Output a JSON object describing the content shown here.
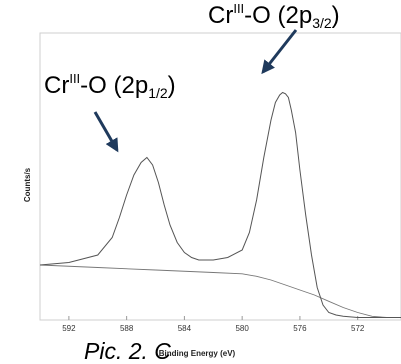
{
  "chart_data": {
    "type": "line",
    "title": "",
    "xlabel": "Binding Energy (eV)",
    "ylabel": "Counts/s",
    "xlim": [
      594,
      569
    ],
    "x_reversed": true,
    "ylim": [
      0,
      100
    ],
    "x_ticks": [
      592,
      588,
      584,
      580,
      576,
      572
    ],
    "grid": false,
    "series": [
      {
        "x": [
          594,
          592,
          590,
          589,
          588.5,
          588,
          587.5,
          587,
          586.6,
          586.2,
          585.8,
          585.4,
          585,
          584.5,
          584,
          583.5,
          583,
          582,
          581,
          580,
          579.5,
          579,
          578.5,
          578,
          577.7,
          577.4,
          577.2,
          577,
          576.8,
          576.6,
          576.3,
          576,
          575.6,
          575.2,
          574.8,
          574.4,
          574,
          573.5,
          573,
          572,
          571,
          570,
          569
        ],
        "y": [
          22,
          23,
          26,
          33,
          41,
          50,
          58,
          63,
          65,
          62,
          55,
          46,
          38,
          31,
          27,
          25,
          24,
          24,
          25,
          28,
          35,
          48,
          65,
          80,
          87,
          90,
          91,
          90.5,
          89,
          84,
          75,
          60,
          42,
          26,
          13,
          6,
          3,
          2,
          1.5,
          1,
          1,
          1,
          1
        ]
      },
      {
        "x": [
          594,
          590,
          586,
          582,
          580,
          579,
          578,
          577,
          576,
          575,
          574,
          573,
          572,
          571,
          570,
          569
        ],
        "y": [
          22,
          21,
          20,
          19,
          18.5,
          17.5,
          16,
          14,
          12,
          10,
          7.5,
          5,
          3,
          1.5,
          1,
          1
        ]
      }
    ]
  },
  "annotations": {
    "peak_left": {
      "base": "Cr",
      "sup": "III",
      "mid": "-O (2p",
      "sub": "1/2",
      "end": ")"
    },
    "peak_right": {
      "base": "Cr",
      "sup": "III",
      "mid": "-O (2p",
      "sub": "3/2",
      "end": ")"
    }
  },
  "caption": "Pic. 2. C",
  "colors": {
    "spectrum": "#555555",
    "background": "#777777",
    "arrow": "#1f3a5c",
    "frame": "#cfcfcf"
  }
}
